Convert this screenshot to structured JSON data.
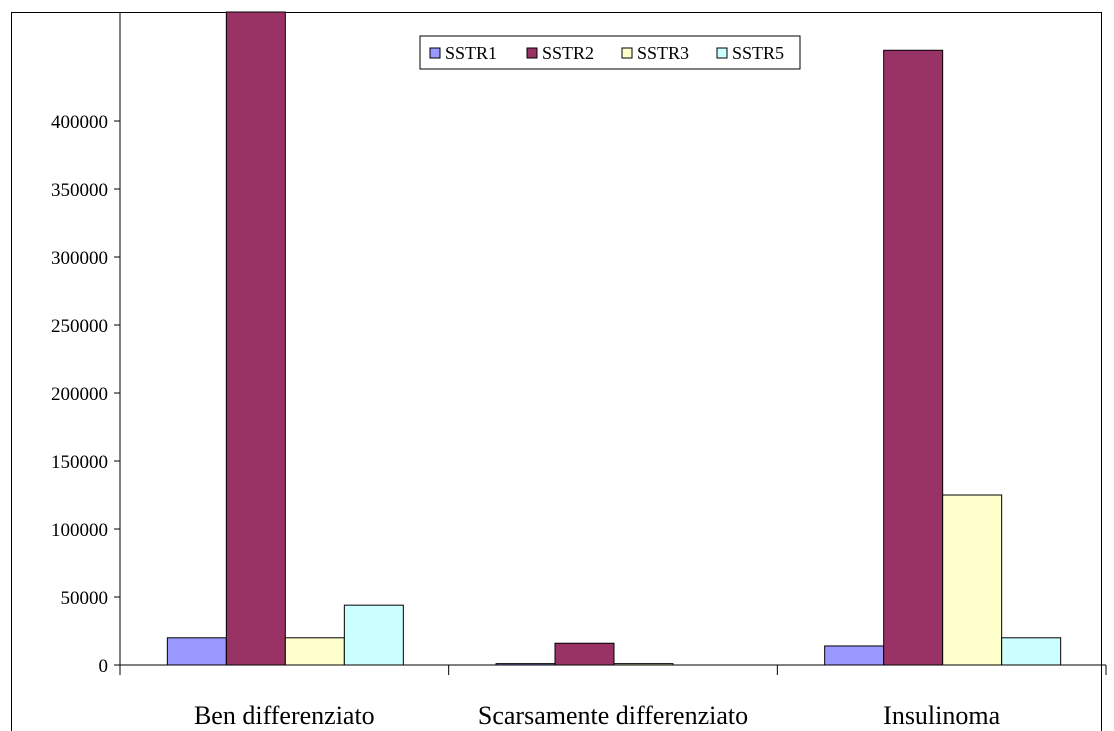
{
  "chart_data": {
    "type": "bar",
    "categories": [
      "Ben differenziato",
      "Scarsamente differenziato",
      "Insulinoma"
    ],
    "series": [
      {
        "name": "SSTR1",
        "color": "#9999ff",
        "values": [
          20000,
          1000,
          14000
        ]
      },
      {
        "name": "SSTR2",
        "color": "#993366",
        "values": [
          482000,
          16000,
          452000
        ]
      },
      {
        "name": "SSTR3",
        "color": "#ffffcc",
        "values": [
          20000,
          1000,
          125000
        ]
      },
      {
        "name": "SSTR5",
        "color": "#ccffff",
        "values": [
          44000,
          0,
          20000
        ]
      }
    ],
    "title": "",
    "xlabel": "",
    "ylabel": "",
    "ylim": [
      0,
      480000
    ],
    "yticks": [
      0,
      50000,
      100000,
      150000,
      200000,
      250000,
      300000,
      350000,
      400000
    ],
    "ytick_labels": [
      "0",
      "50000",
      "100000",
      "150000",
      "200000",
      "250000",
      "300000",
      "350000",
      "400000"
    ],
    "grid": false,
    "legend_position": "top-center"
  }
}
